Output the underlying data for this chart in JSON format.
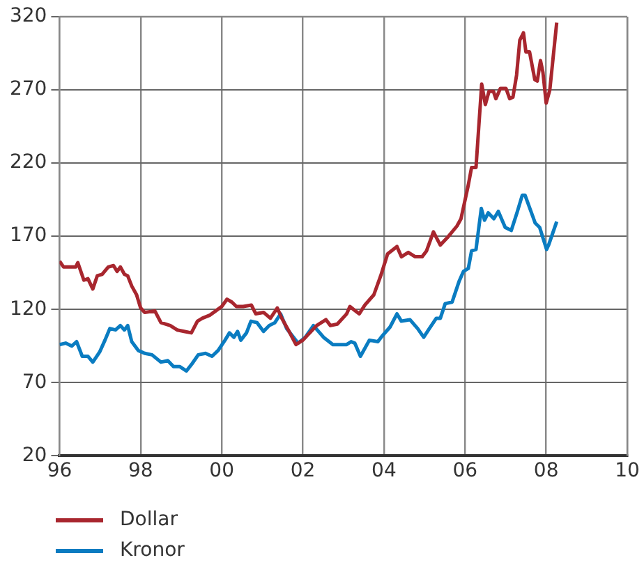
{
  "chart_data": {
    "type": "line",
    "legend": "bottom left",
    "grid": true,
    "marker": "none",
    "line_style": "solid",
    "xlim": [
      1996,
      2010
    ],
    "xticks": [
      {
        "value": 1996,
        "label": "96"
      },
      {
        "value": 1998,
        "label": "98"
      },
      {
        "value": 2000,
        "label": "00"
      },
      {
        "value": 2002,
        "label": "02"
      },
      {
        "value": 2004,
        "label": "04"
      },
      {
        "value": 2006,
        "label": "06"
      },
      {
        "value": 2008,
        "label": "08"
      },
      {
        "value": 2010,
        "label": "10"
      }
    ],
    "ylim": [
      20,
      320
    ],
    "yticks": [
      20,
      70,
      120,
      170,
      220,
      270,
      320
    ],
    "series": [
      {
        "name": "Dollar",
        "color": "#a8262e",
        "x": [
          1996.0,
          1996.1,
          1996.4,
          1996.45,
          1996.6,
          1996.7,
          1996.82,
          1996.93,
          1997.05,
          1997.2,
          1997.33,
          1997.42,
          1997.5,
          1997.6,
          1997.68,
          1997.78,
          1997.9,
          1998.0,
          1998.1,
          1998.35,
          1998.5,
          1998.73,
          1998.9,
          1999.07,
          1999.25,
          1999.4,
          1999.52,
          1999.7,
          1999.85,
          2000.0,
          2000.13,
          2000.25,
          2000.36,
          2000.53,
          2000.73,
          2000.84,
          2001.03,
          2001.2,
          2001.37,
          2001.48,
          2001.66,
          2001.83,
          2002.0,
          2002.17,
          2002.34,
          2002.57,
          2002.68,
          2002.85,
          2003.08,
          2003.16,
          2003.25,
          2003.39,
          2003.53,
          2003.75,
          2003.92,
          2004.09,
          2004.32,
          2004.43,
          2004.6,
          2004.77,
          2004.94,
          2005.05,
          2005.22,
          2005.39,
          2005.56,
          2005.8,
          2005.9,
          2006.08,
          2006.16,
          2006.27,
          2006.41,
          2006.5,
          2006.59,
          2006.7,
          2006.76,
          2006.87,
          2007.01,
          2007.1,
          2007.18,
          2007.27,
          2007.35,
          2007.44,
          2007.5,
          2007.59,
          2007.72,
          2007.78,
          2007.86,
          2007.92,
          2008.0,
          2008.09,
          2008.26
        ],
        "values": [
          153,
          149,
          149,
          152,
          140,
          141,
          134,
          143,
          144,
          149,
          150,
          146,
          149,
          144,
          143,
          136,
          130,
          121,
          118,
          119,
          111,
          109,
          106,
          105,
          104,
          112,
          114,
          116,
          119,
          122,
          127,
          125,
          122,
          122,
          123,
          117,
          118,
          114,
          121,
          114,
          105,
          96,
          99,
          104,
          109,
          113,
          109,
          110,
          117,
          122,
          120,
          117,
          123,
          130,
          143,
          158,
          163,
          156,
          159,
          156,
          156,
          160,
          173,
          164,
          169,
          177,
          182,
          205,
          217,
          217,
          274,
          260,
          269,
          269,
          264,
          271,
          271,
          264,
          265,
          280,
          304,
          309,
          296,
          296,
          277,
          276,
          290,
          282,
          261,
          270,
          316
        ]
      },
      {
        "name": "Kronor",
        "color": "#0a7cc1",
        "x": [
          1996.0,
          1996.15,
          1996.3,
          1996.42,
          1996.56,
          1996.7,
          1996.82,
          1996.99,
          1997.12,
          1997.24,
          1997.38,
          1997.5,
          1997.6,
          1997.68,
          1997.78,
          1997.94,
          1998.1,
          1998.28,
          1998.5,
          1998.67,
          1998.81,
          1998.96,
          1999.13,
          1999.27,
          1999.42,
          1999.6,
          1999.76,
          1999.91,
          2000.08,
          2000.19,
          2000.3,
          2000.39,
          2000.47,
          2000.61,
          2000.72,
          2000.87,
          2001.03,
          2001.17,
          2001.31,
          2001.45,
          2001.6,
          2001.77,
          2001.88,
          2002.06,
          2002.26,
          2002.51,
          2002.74,
          2003.08,
          2003.19,
          2003.28,
          2003.42,
          2003.64,
          2003.85,
          2003.96,
          2004.15,
          2004.32,
          2004.43,
          2004.64,
          2004.83,
          2004.98,
          2005.12,
          2005.29,
          2005.39,
          2005.51,
          2005.68,
          2005.85,
          2005.96,
          2006.08,
          2006.16,
          2006.27,
          2006.4,
          2006.48,
          2006.57,
          2006.71,
          2006.82,
          2006.99,
          2007.14,
          2007.28,
          2007.41,
          2007.48,
          2007.73,
          2007.84,
          2008.01,
          2008.06,
          2008.26
        ],
        "values": [
          96,
          97,
          95,
          98,
          88,
          88,
          84,
          91,
          99,
          107,
          106,
          109,
          106,
          109,
          98,
          92,
          90,
          89,
          84,
          85,
          81,
          81,
          78,
          83,
          89,
          90,
          88,
          92,
          99,
          104,
          101,
          105,
          99,
          104,
          112,
          111,
          105,
          109,
          111,
          117,
          107,
          101,
          97,
          101,
          109,
          101,
          96,
          96,
          98,
          97,
          88,
          99,
          98,
          102,
          108,
          117,
          112,
          113,
          107,
          101,
          107,
          114,
          114,
          124,
          125,
          139,
          146,
          148,
          160,
          161,
          189,
          181,
          186,
          182,
          187,
          176,
          174,
          186,
          198,
          198,
          179,
          176,
          161,
          164,
          180
        ]
      }
    ]
  }
}
